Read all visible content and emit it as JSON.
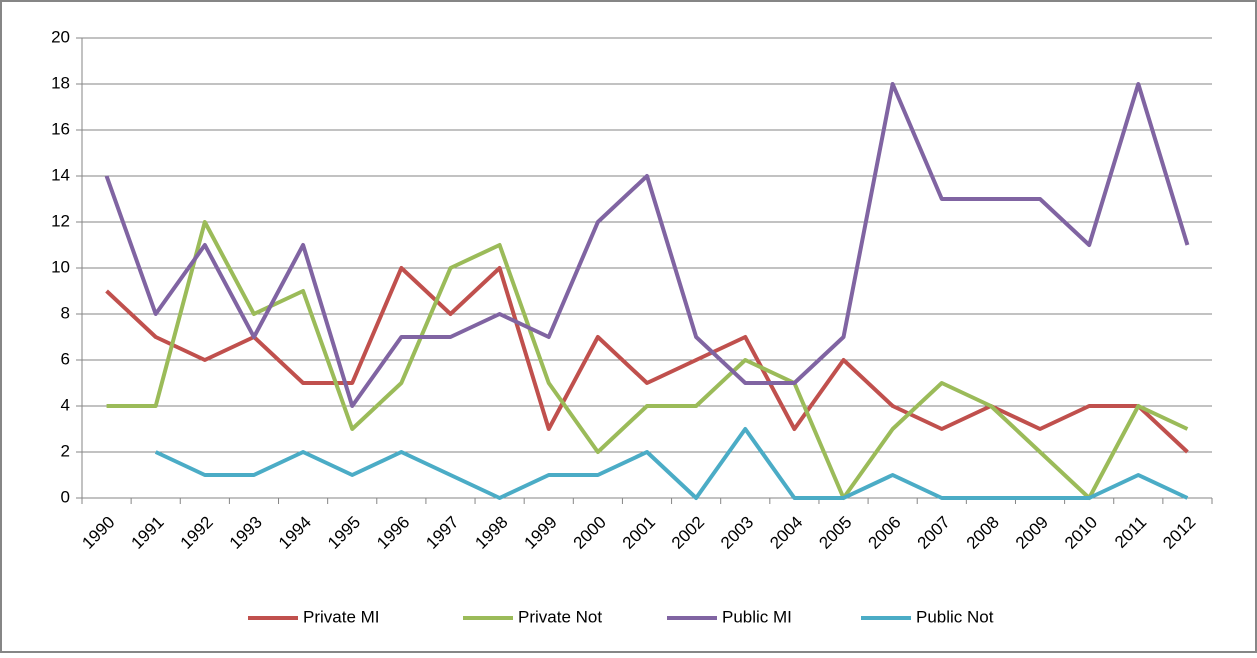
{
  "chart_data": {
    "type": "line",
    "categories": [
      "1990",
      "1991",
      "1992",
      "1993",
      "1994",
      "1995",
      "1996",
      "1997",
      "1998",
      "1999",
      "2000",
      "2001",
      "2002",
      "2003",
      "2004",
      "2005",
      "2006",
      "2007",
      "2008",
      "2009",
      "2010",
      "2011",
      "2012"
    ],
    "series": [
      {
        "name": "Private MI",
        "color": "#c0504d",
        "values": [
          9,
          7,
          6,
          7,
          5,
          5,
          10,
          8,
          10,
          3,
          7,
          5,
          6,
          7,
          3,
          6,
          4,
          3,
          4,
          3,
          4,
          4,
          2
        ]
      },
      {
        "name": "Private Not",
        "color": "#9bbb59",
        "values": [
          4,
          4,
          12,
          8,
          9,
          3,
          5,
          10,
          11,
          5,
          2,
          4,
          4,
          6,
          5,
          0,
          3,
          5,
          4,
          2,
          0,
          4,
          3
        ]
      },
      {
        "name": "Public MI",
        "color": "#8064a2",
        "values": [
          14,
          8,
          11,
          7,
          11,
          4,
          7,
          7,
          8,
          7,
          12,
          14,
          7,
          5,
          5,
          7,
          18,
          13,
          13,
          13,
          11,
          18,
          11
        ]
      },
      {
        "name": "Public Not",
        "color": "#4bacc6",
        "values": [
          null,
          2,
          1,
          1,
          2,
          1,
          2,
          1,
          0,
          1,
          1,
          2,
          0,
          3,
          0,
          0,
          1,
          0,
          0,
          0,
          0,
          1,
          0
        ]
      }
    ],
    "ylim": [
      0,
      20
    ],
    "yticks": [
      0,
      2,
      4,
      6,
      8,
      10,
      12,
      14,
      16,
      18,
      20
    ],
    "grid": true,
    "legend": "bottom"
  }
}
